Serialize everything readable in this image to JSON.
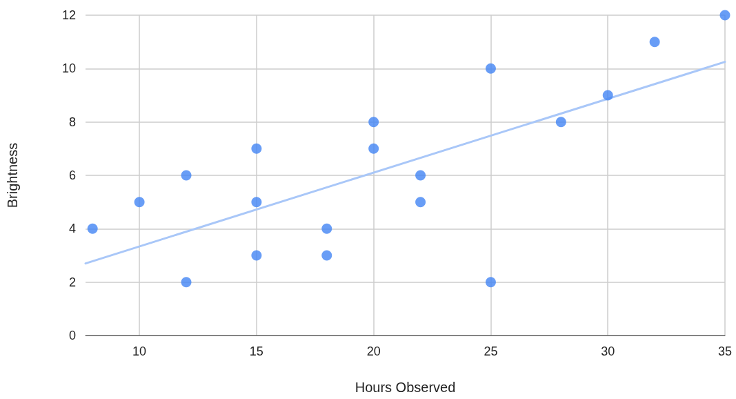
{
  "chart_data": {
    "type": "scatter",
    "xlabel": "Hours Observed",
    "ylabel": "Brightness",
    "xlim": [
      7.7,
      35
    ],
    "xticks": [
      10,
      15,
      20,
      25,
      30,
      35
    ],
    "ylim": [
      0,
      12
    ],
    "yticks": [
      0,
      2,
      4,
      6,
      8,
      10,
      12
    ],
    "grid": true,
    "marker": "circle",
    "series": [
      {
        "color": "#4285f4",
        "x": [
          8,
          10,
          12,
          12,
          15,
          15,
          15,
          18,
          18,
          20,
          20,
          22,
          22,
          25,
          25,
          28,
          30,
          32,
          35
        ],
        "values": [
          4,
          5,
          6,
          2,
          7,
          5,
          3,
          4,
          3,
          8,
          7,
          6,
          5,
          10,
          2,
          8,
          9,
          11,
          12
        ]
      },
      {
        "type": "line",
        "color": "#a9c7f8",
        "x": [
          7.7,
          35
        ],
        "values": [
          2.7,
          10.25
        ],
        "marker": "none"
      }
    ]
  }
}
